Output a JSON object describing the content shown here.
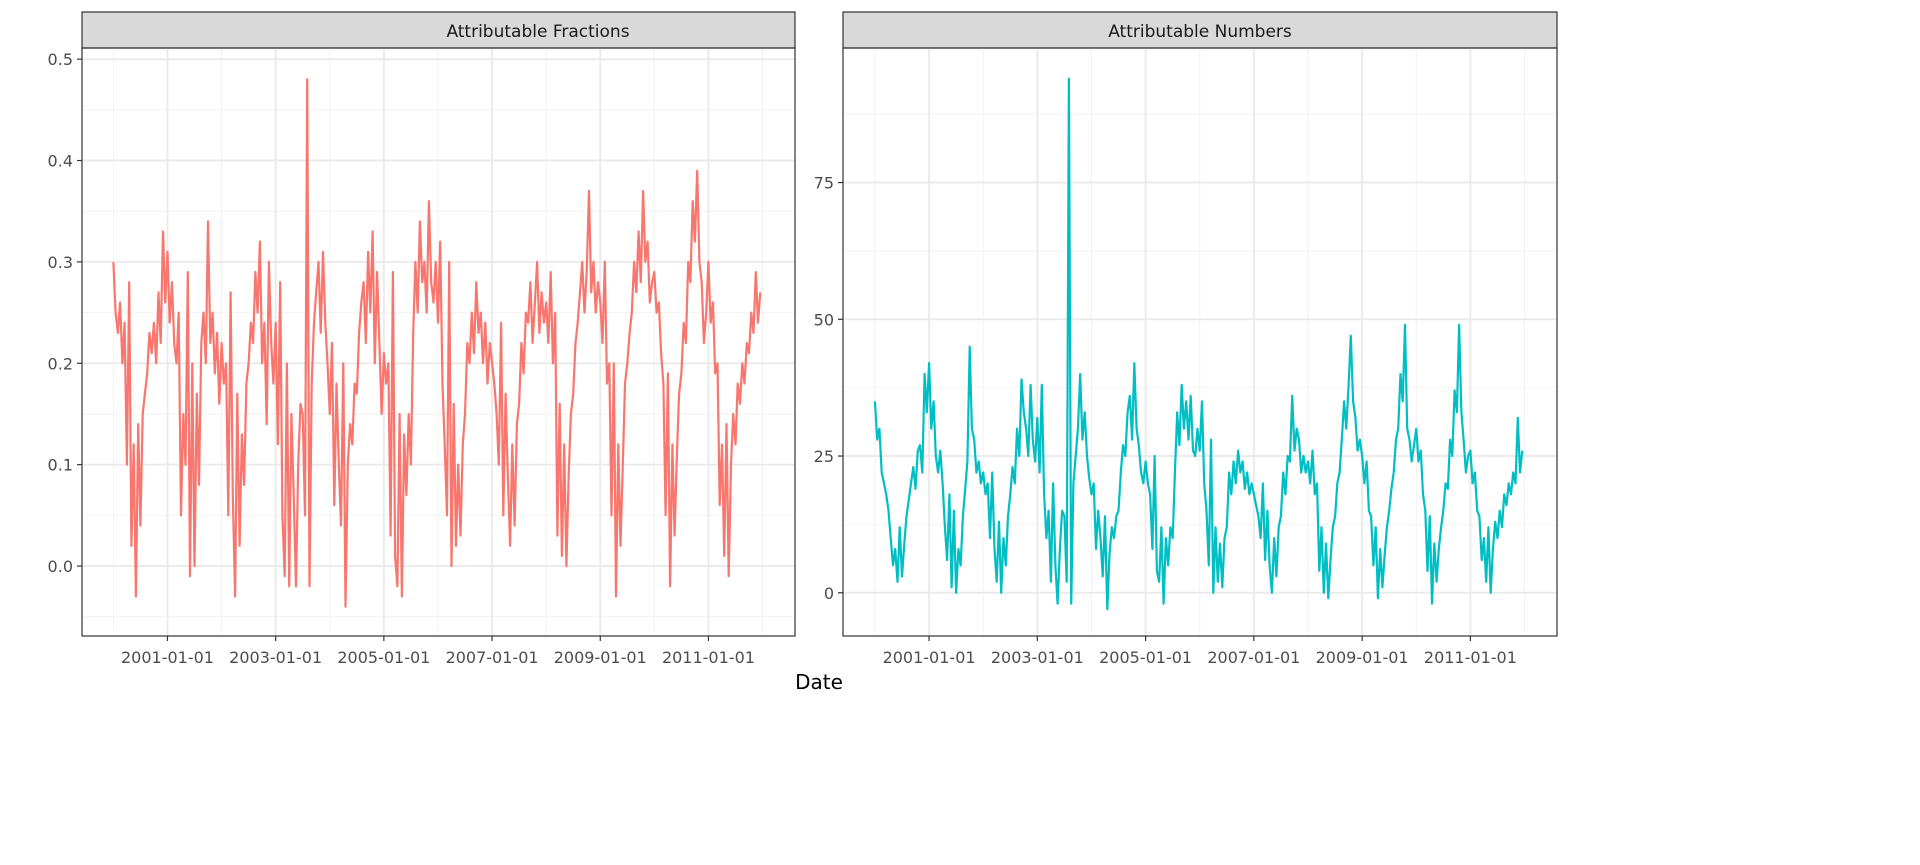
{
  "chart_data": [
    {
      "type": "line",
      "title": "Attributable Fractions",
      "xlabel": "Date",
      "ylabel": "",
      "color": "#F8766D",
      "x_start_year": 2000,
      "points_per_year": 24,
      "xlim": [
        1999.42,
        2012.6
      ],
      "ylim": [
        -0.069,
        0.511
      ],
      "y_ticks": [
        0.0,
        0.1,
        0.2,
        0.3,
        0.4,
        0.5
      ],
      "y_tick_labels": [
        "0.0",
        "0.1",
        "0.2",
        "0.3",
        "0.4",
        "0.5"
      ],
      "x_ticks": [
        2001,
        2003,
        2005,
        2007,
        2009,
        2011
      ],
      "x_tick_labels": [
        "2001-01-01",
        "2003-01-01",
        "2005-01-01",
        "2007-01-01",
        "2009-01-01",
        "2011-01-01"
      ],
      "grid": true,
      "values": [
        0.3,
        0.25,
        0.23,
        0.26,
        0.2,
        0.24,
        0.1,
        0.28,
        0.02,
        0.12,
        -0.03,
        0.14,
        0.04,
        0.15,
        0.17,
        0.19,
        0.23,
        0.21,
        0.24,
        0.2,
        0.27,
        0.22,
        0.33,
        0.26,
        0.31,
        0.24,
        0.28,
        0.22,
        0.2,
        0.25,
        0.05,
        0.15,
        0.1,
        0.29,
        -0.01,
        0.2,
        0.0,
        0.17,
        0.08,
        0.22,
        0.25,
        0.2,
        0.34,
        0.22,
        0.25,
        0.19,
        0.23,
        0.16,
        0.22,
        0.18,
        0.2,
        0.05,
        0.27,
        0.07,
        -0.03,
        0.17,
        0.02,
        0.13,
        0.08,
        0.18,
        0.2,
        0.24,
        0.22,
        0.29,
        0.25,
        0.32,
        0.2,
        0.24,
        0.14,
        0.3,
        0.22,
        0.18,
        0.24,
        0.12,
        0.28,
        0.05,
        -0.01,
        0.2,
        -0.02,
        0.15,
        0.07,
        -0.02,
        0.1,
        0.16,
        0.15,
        0.05,
        0.48,
        -0.02,
        0.18,
        0.24,
        0.27,
        0.3,
        0.23,
        0.31,
        0.24,
        0.2,
        0.15,
        0.22,
        0.06,
        0.18,
        0.1,
        0.04,
        0.2,
        -0.04,
        0.1,
        0.14,
        0.12,
        0.18,
        0.17,
        0.23,
        0.26,
        0.28,
        0.22,
        0.31,
        0.25,
        0.33,
        0.2,
        0.29,
        0.22,
        0.15,
        0.21,
        0.18,
        0.2,
        0.03,
        0.29,
        0.01,
        -0.02,
        0.15,
        -0.03,
        0.13,
        0.07,
        0.15,
        0.1,
        0.23,
        0.3,
        0.25,
        0.34,
        0.28,
        0.3,
        0.25,
        0.36,
        0.28,
        0.26,
        0.3,
        0.24,
        0.32,
        0.18,
        0.12,
        0.05,
        0.3,
        0.0,
        0.16,
        0.02,
        0.1,
        0.03,
        0.12,
        0.15,
        0.22,
        0.2,
        0.25,
        0.21,
        0.28,
        0.23,
        0.25,
        0.2,
        0.24,
        0.18,
        0.22,
        0.2,
        0.18,
        0.15,
        0.1,
        0.24,
        0.05,
        0.17,
        0.09,
        0.02,
        0.12,
        0.04,
        0.14,
        0.16,
        0.22,
        0.19,
        0.25,
        0.24,
        0.28,
        0.22,
        0.26,
        0.3,
        0.23,
        0.27,
        0.24,
        0.26,
        0.22,
        0.29,
        0.2,
        0.25,
        0.03,
        0.16,
        0.01,
        0.12,
        0.0,
        0.09,
        0.15,
        0.17,
        0.22,
        0.24,
        0.27,
        0.3,
        0.25,
        0.29,
        0.37,
        0.27,
        0.3,
        0.25,
        0.28,
        0.26,
        0.22,
        0.3,
        0.18,
        0.2,
        0.05,
        0.2,
        -0.03,
        0.12,
        0.02,
        0.1,
        0.18,
        0.2,
        0.23,
        0.25,
        0.3,
        0.27,
        0.33,
        0.28,
        0.37,
        0.3,
        0.32,
        0.26,
        0.28,
        0.29,
        0.25,
        0.26,
        0.21,
        0.18,
        0.05,
        0.19,
        -0.02,
        0.12,
        0.03,
        0.11,
        0.17,
        0.19,
        0.24,
        0.22,
        0.3,
        0.28,
        0.36,
        0.32,
        0.39,
        0.3,
        0.28,
        0.22,
        0.25,
        0.3,
        0.24,
        0.26,
        0.19,
        0.2,
        0.06,
        0.12,
        0.01,
        0.14,
        -0.01,
        0.1,
        0.15,
        0.12,
        0.18,
        0.16,
        0.2,
        0.18,
        0.22,
        0.21,
        0.25,
        0.23,
        0.29,
        0.24,
        0.27
      ]
    },
    {
      "type": "line",
      "title": "Attributable Numbers",
      "xlabel": "Date",
      "ylabel": "",
      "color": "#00BFC4",
      "x_start_year": 2000,
      "points_per_year": 24,
      "xlim": [
        1999.41,
        2012.6
      ],
      "ylim": [
        -7.9,
        99.6
      ],
      "y_ticks": [
        0,
        25,
        50,
        75
      ],
      "y_tick_labels": [
        "0",
        "25",
        "50",
        "75"
      ],
      "x_ticks": [
        2001,
        2003,
        2005,
        2007,
        2009,
        2011
      ],
      "x_tick_labels": [
        "2001-01-01",
        "2003-01-01",
        "2005-01-01",
        "2007-01-01",
        "2009-01-01",
        "2011-01-01"
      ],
      "grid": true,
      "values": [
        35,
        28,
        30,
        22,
        20,
        18,
        15,
        10,
        5,
        8,
        2,
        12,
        3,
        9,
        14,
        17,
        20,
        23,
        19,
        26,
        27,
        22,
        40,
        33,
        42,
        30,
        35,
        25,
        22,
        26,
        20,
        12,
        6,
        18,
        1,
        15,
        0,
        8,
        5,
        14,
        19,
        24,
        45,
        30,
        28,
        22,
        24,
        20,
        22,
        18,
        20,
        10,
        22,
        8,
        2,
        13,
        0,
        10,
        5,
        14,
        18,
        23,
        20,
        30,
        25,
        39,
        33,
        30,
        25,
        38,
        28,
        24,
        32,
        22,
        38,
        18,
        10,
        15,
        2,
        20,
        5,
        -2,
        8,
        15,
        14,
        2,
        94,
        -2,
        20,
        25,
        30,
        40,
        28,
        33,
        25,
        21,
        18,
        20,
        8,
        15,
        10,
        3,
        14,
        -3,
        7,
        12,
        10,
        14,
        15,
        22,
        27,
        25,
        33,
        36,
        28,
        42,
        30,
        27,
        22,
        20,
        24,
        20,
        18,
        8,
        25,
        4,
        2,
        12,
        -2,
        10,
        5,
        12,
        10,
        22,
        33,
        27,
        38,
        30,
        35,
        28,
        36,
        26,
        25,
        30,
        26,
        35,
        20,
        15,
        5,
        28,
        0,
        12,
        2,
        9,
        1,
        10,
        12,
        22,
        18,
        24,
        20,
        26,
        22,
        24,
        19,
        22,
        18,
        20,
        18,
        16,
        14,
        10,
        20,
        6,
        15,
        5,
        0,
        10,
        3,
        12,
        14,
        22,
        18,
        25,
        24,
        36,
        26,
        30,
        28,
        22,
        25,
        22,
        24,
        20,
        26,
        18,
        20,
        4,
        12,
        0,
        9,
        -1,
        6,
        12,
        14,
        20,
        22,
        28,
        35,
        30,
        38,
        47,
        35,
        32,
        26,
        28,
        25,
        20,
        24,
        15,
        14,
        5,
        12,
        -1,
        8,
        1,
        7,
        12,
        15,
        19,
        22,
        28,
        30,
        40,
        35,
        49,
        30,
        28,
        24,
        27,
        30,
        24,
        26,
        18,
        15,
        4,
        14,
        -2,
        9,
        2,
        8,
        12,
        15,
        20,
        19,
        28,
        25,
        37,
        33,
        49,
        33,
        28,
        22,
        25,
        26,
        20,
        22,
        15,
        14,
        6,
        10,
        2,
        12,
        0,
        8,
        13,
        10,
        15,
        12,
        18,
        16,
        20,
        18,
        22,
        20,
        32,
        22,
        26
      ]
    }
  ],
  "shared_xlabel": "Date"
}
